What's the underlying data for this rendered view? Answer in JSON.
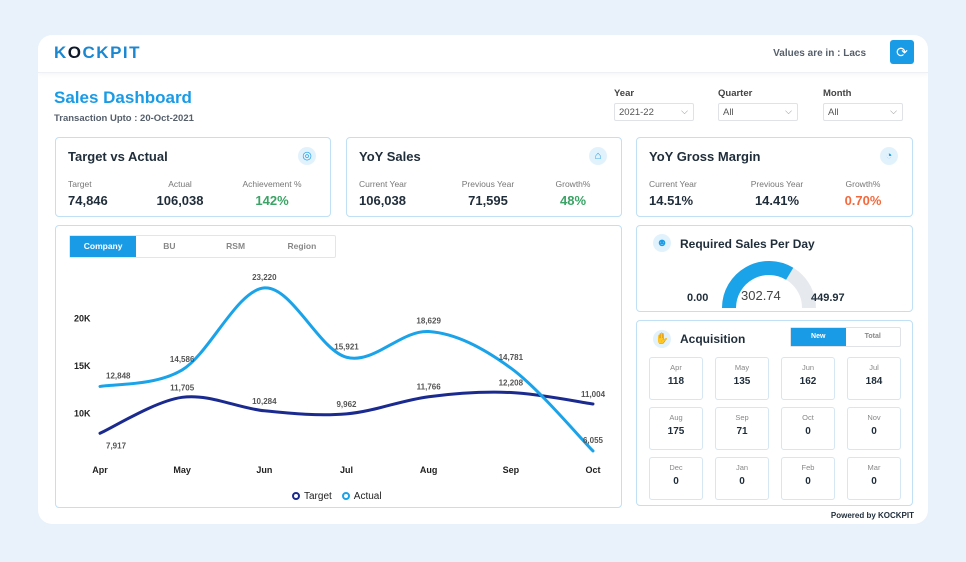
{
  "brand": {
    "logo_pre": "K",
    "logo_o": "O",
    "logo_post": "CKPIT"
  },
  "header": {
    "values_note": "Values are in : Lacs",
    "refresh_icon": "refresh-icon"
  },
  "page": {
    "title": "Sales Dashboard",
    "subtitle": "Transaction Upto : 20-Oct-2021"
  },
  "filters": {
    "year": {
      "label": "Year",
      "value": "2021-22"
    },
    "quarter": {
      "label": "Quarter",
      "value": "All"
    },
    "month": {
      "label": "Month",
      "value": "All"
    }
  },
  "target_vs_actual": {
    "title": "Target vs Actual",
    "target_label": "Target",
    "target_value": "74,846",
    "actual_label": "Actual",
    "actual_value": "106,038",
    "achievement_label": "Achievement %",
    "achievement_value": "142%"
  },
  "yoy_sales": {
    "title": "YoY Sales",
    "current_label": "Current Year",
    "current_value": "106,038",
    "previous_label": "Previous Year",
    "previous_value": "71,595",
    "growth_label": "Growth%",
    "growth_value": "48%"
  },
  "yoy_margin": {
    "title": "YoY Gross Margin",
    "current_label": "Current Year",
    "current_value": "14.51%",
    "previous_label": "Previous Year",
    "previous_value": "14.41%",
    "growth_label": "Growth%",
    "growth_value": "0.70%"
  },
  "chart_tabs": [
    "Company",
    "BU",
    "RSM",
    "Region"
  ],
  "chart_data": {
    "type": "line",
    "categories": [
      "Apr",
      "May",
      "Jun",
      "Jul",
      "Aug",
      "Sep",
      "Oct"
    ],
    "series": [
      {
        "name": "Target",
        "values": [
          7917,
          11705,
          10284,
          9962,
          11766,
          12208,
          11004
        ],
        "labels": [
          "7,917",
          "11,705",
          "10,284",
          "9,962",
          "11,766",
          "12,208",
          "11,004"
        ],
        "color": "#1a2a8f"
      },
      {
        "name": "Actual",
        "values": [
          12848,
          14586,
          23220,
          15921,
          18629,
          14781,
          6055
        ],
        "labels": [
          "12,848",
          "14,586",
          "23,220",
          "15,921",
          "18,629",
          "14,781",
          "6,055"
        ],
        "color": "#1aa3e8"
      }
    ],
    "yticks": [
      "10K",
      "15K",
      "20K"
    ],
    "ytick_values": [
      10000,
      15000,
      20000
    ],
    "ylim": [
      5000,
      25000
    ]
  },
  "required_sales": {
    "title": "Required Sales Per Day",
    "min": "0.00",
    "value": "302.74",
    "max": "449.97",
    "fraction": 0.673
  },
  "acquisition": {
    "title": "Acquisition",
    "tabs": [
      "New",
      "Total"
    ],
    "months": [
      {
        "m": "Apr",
        "v": "118"
      },
      {
        "m": "May",
        "v": "135"
      },
      {
        "m": "Jun",
        "v": "162"
      },
      {
        "m": "Jul",
        "v": "184"
      },
      {
        "m": "Aug",
        "v": "175"
      },
      {
        "m": "Sep",
        "v": "71"
      },
      {
        "m": "Oct",
        "v": "0"
      },
      {
        "m": "Nov",
        "v": "0"
      },
      {
        "m": "Dec",
        "v": "0"
      },
      {
        "m": "Jan",
        "v": "0"
      },
      {
        "m": "Feb",
        "v": "0"
      },
      {
        "m": "Mar",
        "v": "0"
      }
    ]
  },
  "footer": {
    "powered": "Powered by KOCKPIT"
  },
  "colors": {
    "accent": "#1a9be6",
    "target_line": "#1a2a8f",
    "actual_line": "#1aa3e8",
    "growth_good": "#3aa365",
    "growth_bad": "#f4693b"
  }
}
